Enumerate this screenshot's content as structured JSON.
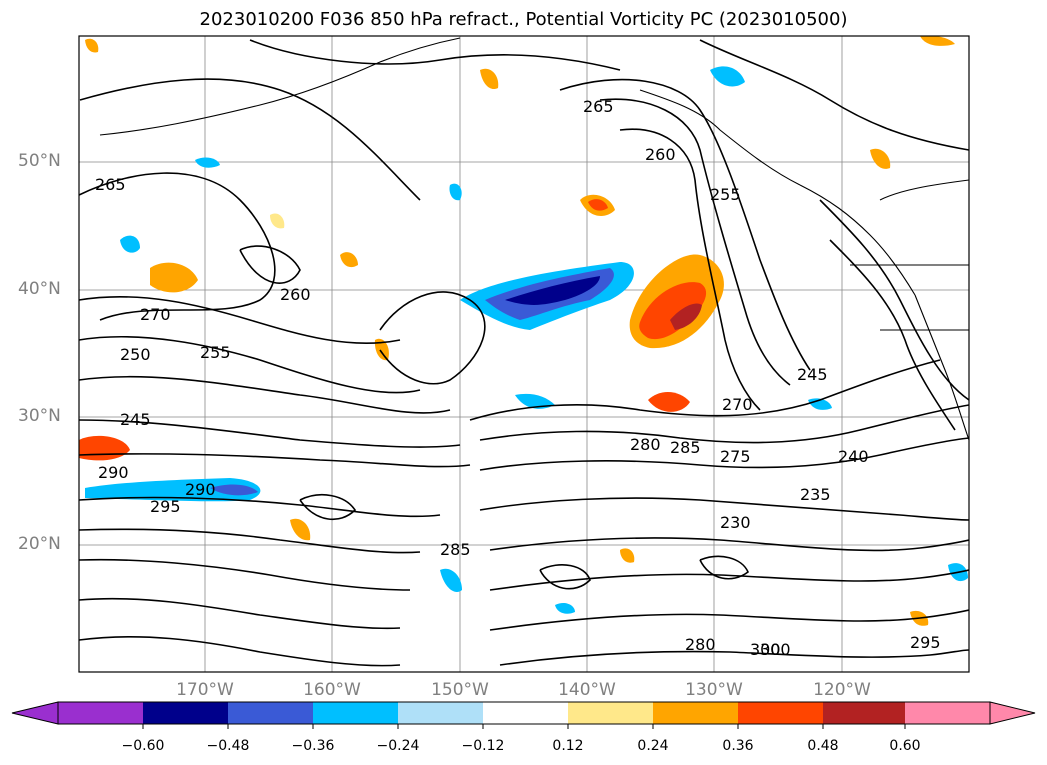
{
  "title": "2023010200 F036 850 hPa refract., Potential Vorticity PC (2023010500)",
  "map": {
    "lat_labels": [
      "50°N",
      "40°N",
      "30°N",
      "20°N"
    ],
    "lon_labels": [
      "170°W",
      "160°W",
      "150°W",
      "140°W",
      "130°W",
      "120°W"
    ],
    "contour_labels": [
      "265",
      "260",
      "255",
      "250",
      "245",
      "240",
      "270",
      "275",
      "280",
      "285",
      "290",
      "295",
      "300",
      "230",
      "235",
      "265",
      "260",
      "255",
      "245",
      "270",
      "280",
      "285",
      "290",
      "295",
      "300"
    ]
  },
  "colorbar": {
    "tick_labels": [
      "−0.60",
      "−0.48",
      "−0.36",
      "−0.24",
      "−0.12",
      "0.12",
      "0.24",
      "0.36",
      "0.48",
      "0.60"
    ],
    "colors": [
      "#9a2fcf",
      "#00008b",
      "#3a5ad6",
      "#00bfff",
      "#afe0f8",
      "#ffffff",
      "#ffe88a",
      "#ffa500",
      "#ff4500",
      "#b22222",
      "#ff88aa"
    ]
  }
}
